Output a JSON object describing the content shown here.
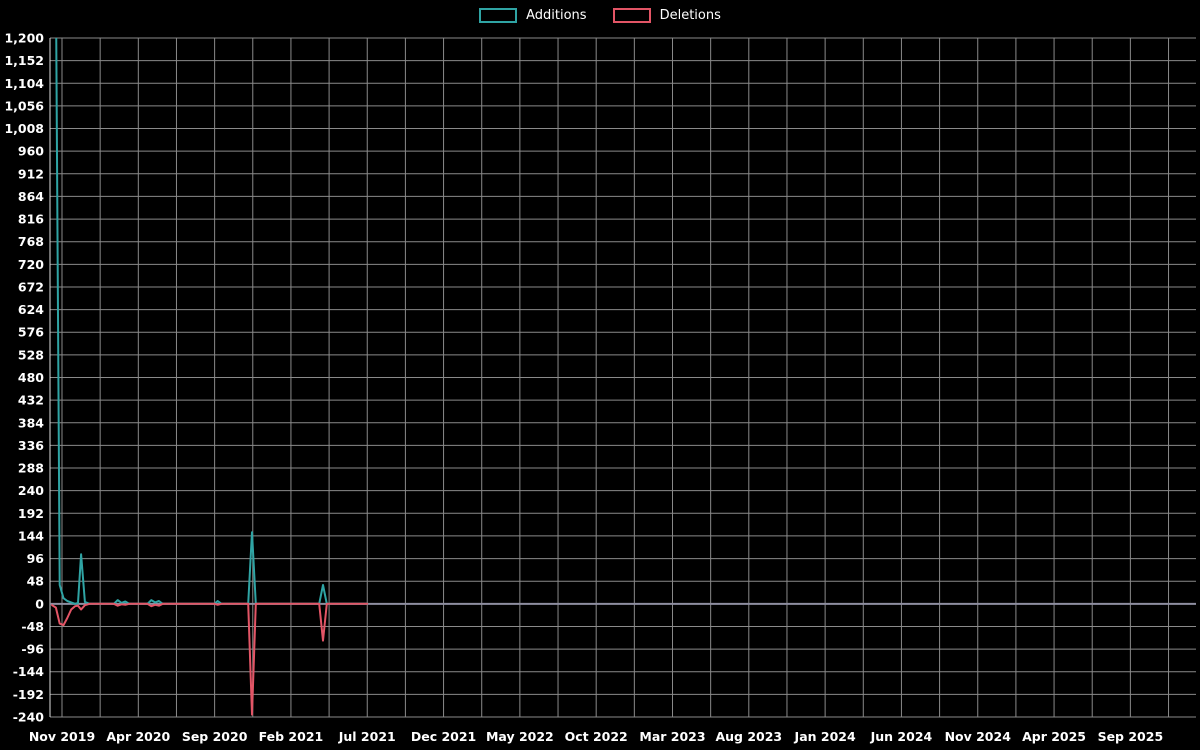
{
  "legend": {
    "additions_label": "Additions",
    "deletions_label": "Deletions"
  },
  "colors": {
    "background": "#000000",
    "grid": "#8a8a8a",
    "zero_line": "#8e8ea0",
    "axis": "#e0e0e0",
    "text": "#ffffff",
    "additions": "#2fa4a4",
    "deletions": "#e35566"
  },
  "chart_data": {
    "type": "line",
    "title": "",
    "grid": true,
    "legend_position": "top-center",
    "ylim": [
      -240,
      1200
    ],
    "xlim_months": [
      -0.786,
      74.3
    ],
    "y_tick_values": [
      1200,
      1152,
      1104,
      1056,
      1008,
      960,
      912,
      864,
      816,
      768,
      720,
      672,
      624,
      576,
      528,
      480,
      432,
      384,
      336,
      288,
      240,
      192,
      144,
      96,
      48,
      0,
      -48,
      -96,
      -144,
      -192,
      -240
    ],
    "y_tick_labels": [
      "1,200",
      "1,152",
      "1,104",
      "1,056",
      "1,008",
      "960",
      "912",
      "864",
      "816",
      "768",
      "720",
      "672",
      "624",
      "576",
      "528",
      "480",
      "432",
      "384",
      "336",
      "288",
      "240",
      "192",
      "144",
      "96",
      "48",
      "0",
      "-48",
      "-96",
      "-144",
      "-192",
      "-240"
    ],
    "x_tick_months": [
      0,
      5,
      10,
      15,
      20,
      25,
      30,
      35,
      40,
      45,
      50,
      55,
      60,
      65,
      70
    ],
    "x_tick_labels": [
      "Nov 2019",
      "Apr 2020",
      "Sep 2020",
      "Feb 2021",
      "Jul 2021",
      "Dec 2021",
      "May 2022",
      "Oct 2022",
      "Mar 2023",
      "Aug 2023",
      "Jan 2024",
      "Jun 2024",
      "Nov 2024",
      "Apr 2025",
      "Sep 2025"
    ],
    "vertical_grid": {
      "start": 0,
      "step": 2.5,
      "end": 75
    },
    "series": [
      {
        "name": "Additions",
        "color_key": "additions",
        "points": [
          [
            -0.65,
            1350
          ],
          [
            -0.4,
            1320
          ],
          [
            -0.15,
            40
          ],
          [
            0.1,
            12
          ],
          [
            0.35,
            6
          ],
          [
            0.6,
            3
          ],
          [
            0.85,
            0
          ],
          [
            1.05,
            2
          ],
          [
            1.25,
            105
          ],
          [
            1.5,
            4
          ],
          [
            1.8,
            0
          ],
          [
            3.4,
            0
          ],
          [
            3.65,
            8
          ],
          [
            3.9,
            2
          ],
          [
            4.15,
            5
          ],
          [
            4.4,
            0
          ],
          [
            5.6,
            0
          ],
          [
            5.85,
            8
          ],
          [
            6.1,
            3
          ],
          [
            6.35,
            6
          ],
          [
            6.6,
            0
          ],
          [
            10.0,
            0
          ],
          [
            10.2,
            6
          ],
          [
            10.45,
            0
          ],
          [
            12.2,
            0
          ],
          [
            12.45,
            152
          ],
          [
            12.7,
            0
          ],
          [
            16.85,
            0
          ],
          [
            17.1,
            40
          ],
          [
            17.35,
            0
          ],
          [
            20.0,
            0
          ]
        ]
      },
      {
        "name": "Deletions",
        "color_key": "deletions",
        "points": [
          [
            -0.65,
            -3
          ],
          [
            -0.4,
            -8
          ],
          [
            -0.15,
            -42
          ],
          [
            0.1,
            -45
          ],
          [
            0.35,
            -30
          ],
          [
            0.6,
            -12
          ],
          [
            0.85,
            -5
          ],
          [
            1.05,
            -4
          ],
          [
            1.25,
            -12
          ],
          [
            1.5,
            -3
          ],
          [
            1.8,
            0
          ],
          [
            3.4,
            0
          ],
          [
            3.65,
            -4
          ],
          [
            3.9,
            -1
          ],
          [
            4.15,
            -2
          ],
          [
            4.4,
            0
          ],
          [
            5.6,
            0
          ],
          [
            5.85,
            -5
          ],
          [
            6.1,
            -2
          ],
          [
            6.35,
            -4
          ],
          [
            6.6,
            0
          ],
          [
            10.0,
            0
          ],
          [
            10.2,
            -2
          ],
          [
            10.45,
            0
          ],
          [
            12.2,
            0
          ],
          [
            12.45,
            -235
          ],
          [
            12.7,
            0
          ],
          [
            16.85,
            0
          ],
          [
            17.1,
            -78
          ],
          [
            17.35,
            0
          ],
          [
            20.0,
            0
          ]
        ]
      }
    ]
  }
}
